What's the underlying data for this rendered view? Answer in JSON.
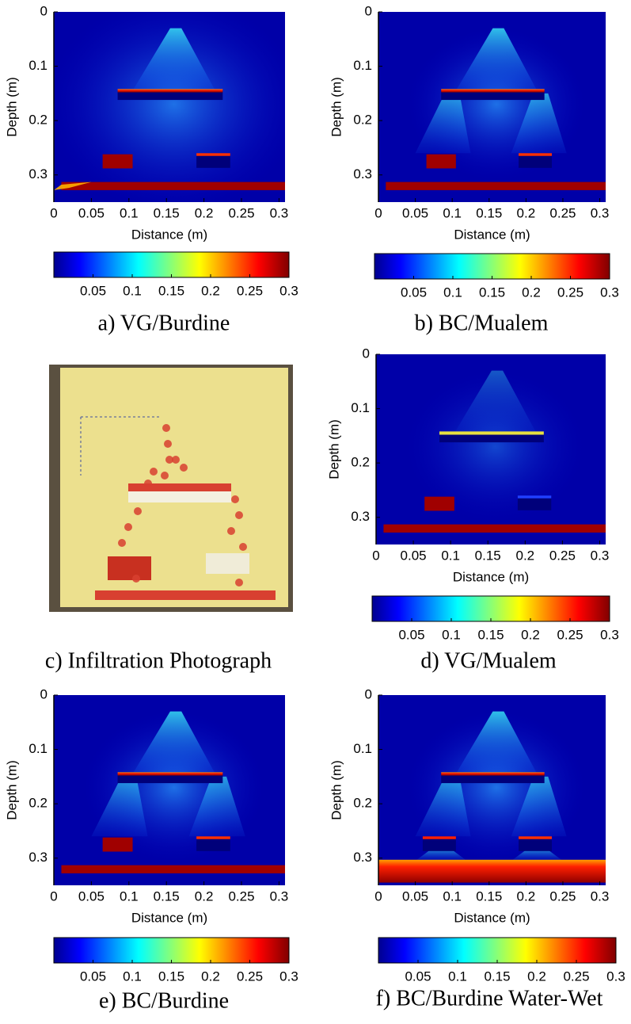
{
  "chart_data": [
    {
      "type": "heatmap",
      "caption": "a) VG/Burdine",
      "xlabel": "Distance (m)",
      "ylabel": "Depth (m)",
      "xlim": [
        0,
        0.308
      ],
      "ylim": [
        0,
        0.35
      ],
      "xticks": [
        0,
        0.05,
        0.1,
        0.15,
        0.2,
        0.25,
        0.3
      ],
      "yticks": [
        0,
        0.1,
        0.2,
        0.3
      ],
      "colorbar": {
        "lim": [
          0,
          0.3
        ],
        "ticks": [
          0.05,
          0.1,
          0.15,
          0.2,
          0.25,
          0.3
        ]
      }
    },
    {
      "type": "heatmap",
      "caption": "b) BC/Mualem",
      "xlabel": "Distance (m)",
      "ylabel": "Depth (m)",
      "xlim": [
        0,
        0.308
      ],
      "ylim": [
        0,
        0.35
      ],
      "xticks": [
        0,
        0.05,
        0.1,
        0.15,
        0.2,
        0.25,
        0.3
      ],
      "yticks": [
        0,
        0.1,
        0.2,
        0.3
      ],
      "colorbar": {
        "lim": [
          0,
          0.3
        ],
        "ticks": [
          0.05,
          0.1,
          0.15,
          0.2,
          0.25,
          0.3
        ]
      }
    },
    {
      "type": "photo",
      "caption": "c) Infiltration Photograph"
    },
    {
      "type": "heatmap",
      "caption": "d) VG/Mualem",
      "xlabel": "Distance (m)",
      "ylabel": "Depth (m)",
      "xlim": [
        0,
        0.308
      ],
      "ylim": [
        0,
        0.35
      ],
      "xticks": [
        0,
        0.05,
        0.1,
        0.15,
        0.2,
        0.25,
        0.3
      ],
      "yticks": [
        0,
        0.1,
        0.2,
        0.3
      ],
      "colorbar": {
        "lim": [
          0,
          0.3
        ],
        "ticks": [
          0.05,
          0.1,
          0.15,
          0.2,
          0.25,
          0.3
        ]
      }
    },
    {
      "type": "heatmap",
      "caption": "e) BC/Burdine",
      "xlabel": "Distance (m)",
      "ylabel": "Depth (m)",
      "xlim": [
        0,
        0.308
      ],
      "ylim": [
        0,
        0.35
      ],
      "xticks": [
        0,
        0.05,
        0.1,
        0.15,
        0.2,
        0.25,
        0.3
      ],
      "yticks": [
        0,
        0.1,
        0.2,
        0.3
      ],
      "colorbar": {
        "lim": [
          0,
          0.3
        ],
        "ticks": [
          0.05,
          0.1,
          0.15,
          0.2,
          0.25,
          0.3
        ]
      }
    },
    {
      "type": "heatmap",
      "caption": "f) BC/Burdine Water-Wet",
      "xlabel": "Distance (m)",
      "ylabel": "Depth (m)",
      "xlim": [
        0,
        0.308
      ],
      "ylim": [
        0,
        0.35
      ],
      "xticks": [
        0,
        0.05,
        0.1,
        0.15,
        0.2,
        0.25,
        0.3
      ],
      "yticks": [
        0,
        0.1,
        0.2,
        0.3
      ],
      "colorbar": {
        "lim": [
          0,
          0.3
        ],
        "ticks": [
          0.05,
          0.1,
          0.15,
          0.2,
          0.25,
          0.3
        ]
      }
    }
  ]
}
